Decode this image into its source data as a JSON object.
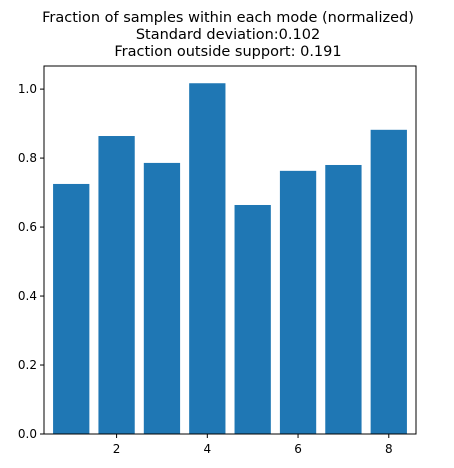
{
  "chart_data": {
    "type": "bar",
    "title_lines": [
      "Fraction of samples within each mode (normalized)",
      "Standard deviation:0.102",
      "Fraction outside support: 0.191"
    ],
    "x": [
      1,
      2,
      3,
      4,
      5,
      6,
      7,
      8
    ],
    "values": [
      0.725,
      0.864,
      0.786,
      1.017,
      0.664,
      0.763,
      0.78,
      0.882
    ],
    "bar_width": 0.8,
    "xlim": [
      0.4,
      8.6
    ],
    "ylim": [
      0,
      1.067
    ],
    "x_ticks": [
      2,
      4,
      6,
      8
    ],
    "x_tick_labels": [
      "2",
      "4",
      "6",
      "8"
    ],
    "y_ticks": [
      0,
      0.2,
      0.4,
      0.6,
      0.8,
      1.0
    ],
    "y_tick_labels": [
      "0.0",
      "0.2",
      "0.4",
      "0.6",
      "0.8",
      "1.0"
    ],
    "bar_color": "#1f77b4",
    "grid": false
  }
}
